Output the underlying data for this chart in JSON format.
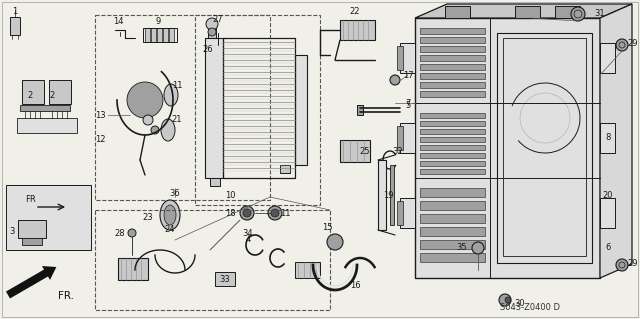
{
  "bg_color": "#f0efe8",
  "inner_bg": "#f7f6f0",
  "lc": "#1a1a1a",
  "gray1": "#c8c8c8",
  "gray2": "#a0a0a0",
  "gray3": "#e0e0e0",
  "watermark": "S043-Z0400 D",
  "fs": 7.0,
  "fs_small": 6.0
}
